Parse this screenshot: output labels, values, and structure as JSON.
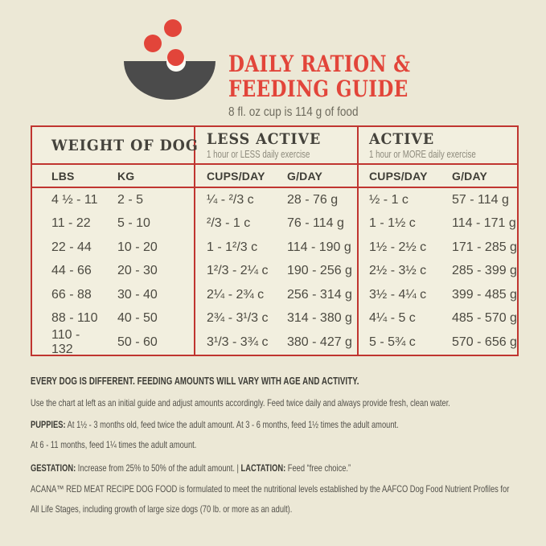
{
  "header": {
    "icon": "dog-bowl-kibble-icon",
    "title_line1": "DAILY RATION &",
    "title_line2": "FEEDING GUIDE",
    "subtitle": "8 fl. oz cup is 114 g of food"
  },
  "colors": {
    "background": "#ECE8D6",
    "table_background": "#F2EFDF",
    "accent_red": "#E2453A",
    "table_border_red": "#C03530",
    "bowl_gray": "#4B4B4B",
    "text_dark": "#45433C"
  },
  "table": {
    "group_headers": [
      {
        "label": "WEIGHT OF DOG",
        "sublabel": ""
      },
      {
        "label": "LESS ACTIVE",
        "sublabel": "1 hour or LESS daily exercise"
      },
      {
        "label": "ACTIVE",
        "sublabel": "1 hour or MORE daily exercise"
      }
    ],
    "column_headers": [
      "LBS",
      "KG",
      "CUPS/DAY",
      "G/DAY",
      "CUPS/DAY",
      "G/DAY"
    ],
    "rows": [
      [
        "4 ½ - 11",
        "2 - 5",
        "¼ - ²/3 c",
        "28 - 76 g",
        "½ - 1 c",
        "57 - 114 g"
      ],
      [
        "11 - 22",
        "5 - 10",
        "²/3 - 1 c",
        "76 - 114 g",
        "1 - 1½ c",
        "114 - 171 g"
      ],
      [
        "22 - 44",
        "10 - 20",
        "1 - 1²/3 c",
        "114 - 190 g",
        "1½ - 2½ c",
        "171 - 285 g"
      ],
      [
        "44 - 66",
        "20 - 30",
        "1²/3 - 2¼ c",
        "190 - 256 g",
        "2½ - 3½ c",
        "285 - 399 g"
      ],
      [
        "66 - 88",
        "30 - 40",
        "2¼ - 2¾ c",
        "256 - 314 g",
        "3½ - 4¼ c",
        "399 - 485 g"
      ],
      [
        "88 - 110",
        "40 - 50",
        "2¾ - 3¹/3 c",
        "314 - 380 g",
        "4¼ - 5 c",
        "485 - 570 g"
      ],
      [
        "110 - 132",
        "50 - 60",
        "3¹/3 - 3¾ c",
        "380 - 427 g",
        "5 - 5¾ c",
        "570 - 656 g"
      ]
    ]
  },
  "notes": {
    "heading": "EVERY DOG IS DIFFERENT. FEEDING AMOUNTS WILL VARY WITH AGE AND ACTIVITY.",
    "intro": "Use the chart at left as an initial guide and adjust amounts accordingly. Feed twice daily and always provide fresh, clean water.",
    "puppies_label": "PUPPIES:",
    "puppies_text": " At 1½ - 3 months old, feed twice the adult amount. At 3 - 6 months, feed 1½ times the adult amount.",
    "puppies_text_line2": "At 6 - 11 months, feed 1¼ times the adult amount.",
    "gestation_label": "GESTATION:",
    "gestation_text": " Increase from 25% to 50% of the adult amount. ",
    "separator": "| ",
    "lactation_label": "LACTATION:",
    "lactation_text": " Feed “free choice.”",
    "aafco_text": "ACANA™ RED MEAT RECIPE DOG FOOD is formulated to meet the nutritional levels established by the AAFCO Dog Food Nutrient Profiles for All Life Stages, including growth of large size dogs (70 lb. or more as an adult)."
  }
}
